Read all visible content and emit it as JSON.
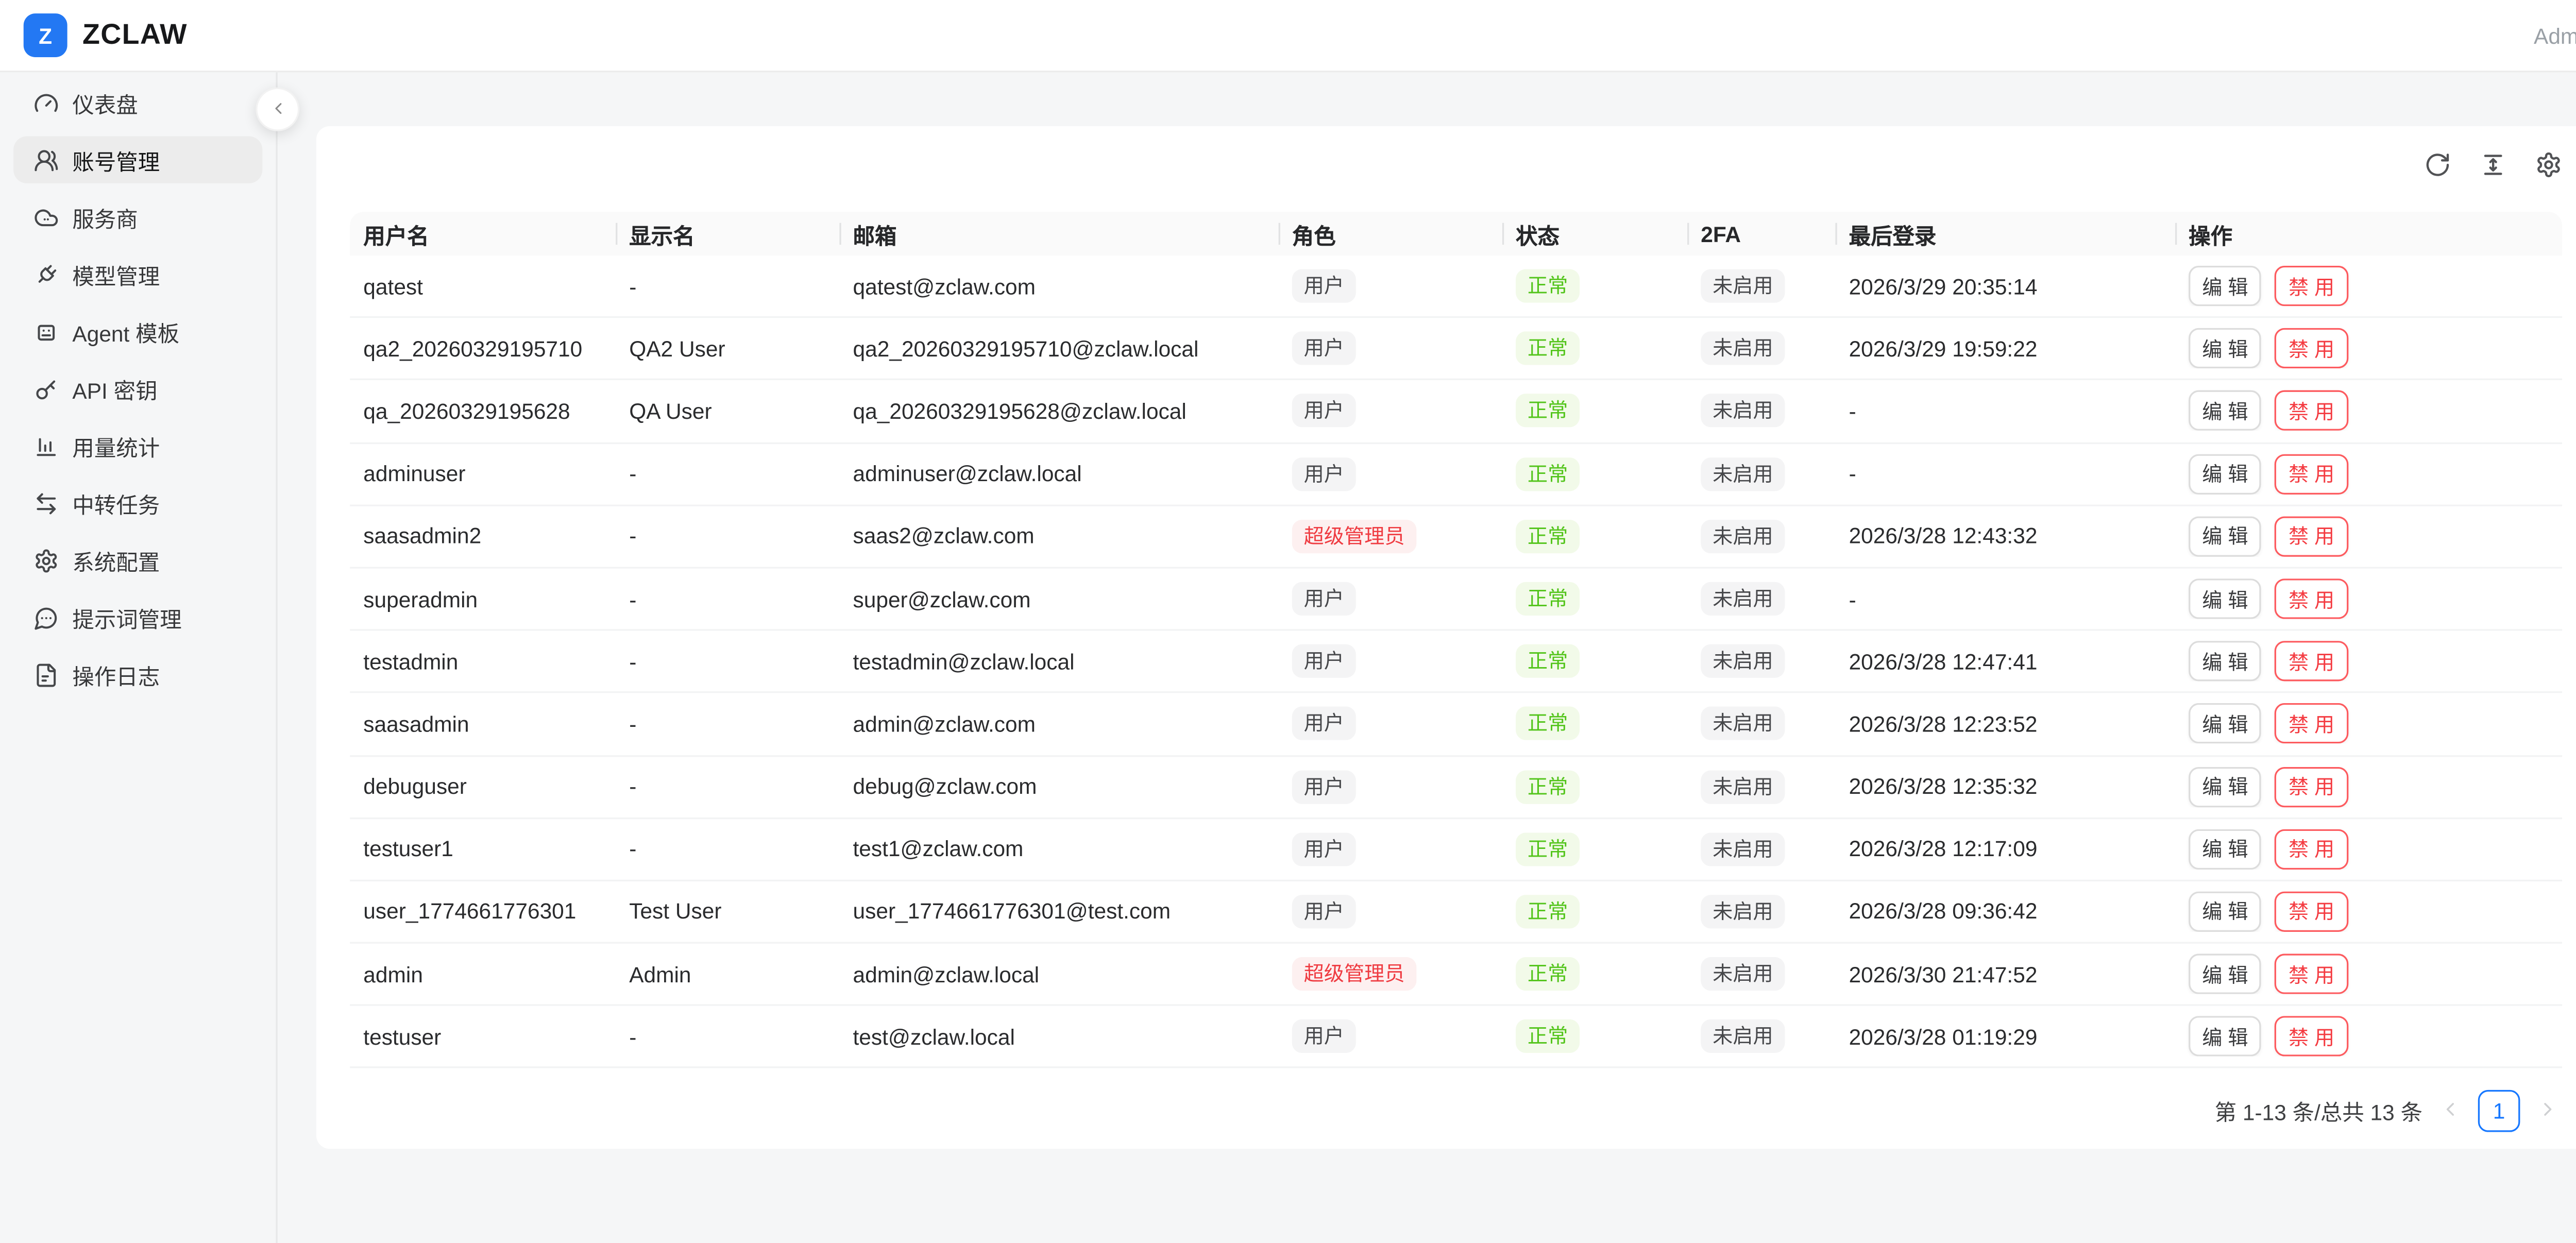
{
  "topbar": {
    "logo_letter": "Z",
    "brand": "ZCLAW",
    "user_label": "Admin"
  },
  "sidebar": {
    "items": [
      {
        "key": "dashboard",
        "icon": "gauge-icon",
        "label": "仪表盘",
        "active": false
      },
      {
        "key": "accounts",
        "icon": "users-icon",
        "label": "账号管理",
        "active": true
      },
      {
        "key": "providers",
        "icon": "cloud-icon",
        "label": "服务商",
        "active": false
      },
      {
        "key": "models",
        "icon": "plug-icon",
        "label": "模型管理",
        "active": false
      },
      {
        "key": "agent-templates",
        "icon": "bot-icon",
        "label": "Agent 模板",
        "active": false
      },
      {
        "key": "api-keys",
        "icon": "key-icon",
        "label": "API 密钥",
        "active": false
      },
      {
        "key": "usage-stats",
        "icon": "chart-icon",
        "label": "用量统计",
        "active": false
      },
      {
        "key": "relay-tasks",
        "icon": "swap-icon",
        "label": "中转任务",
        "active": false
      },
      {
        "key": "system-config",
        "icon": "gear-icon",
        "label": "系统配置",
        "active": false
      },
      {
        "key": "prompts",
        "icon": "chat-icon",
        "label": "提示词管理",
        "active": false
      },
      {
        "key": "op-logs",
        "icon": "file-icon",
        "label": "操作日志",
        "active": false
      }
    ]
  },
  "toolbar": {
    "icons": [
      {
        "name": "refresh-icon"
      },
      {
        "name": "column-height-icon"
      },
      {
        "name": "settings-icon"
      }
    ]
  },
  "table": {
    "columns": [
      "用户名",
      "显示名",
      "邮箱",
      "角色",
      "状态",
      "2FA",
      "最后登录",
      "操作"
    ],
    "actions": {
      "edit": "编 辑",
      "disable": "禁 用"
    },
    "rows": [
      {
        "username": "qatest",
        "display_name": "-",
        "email": "qatest@zclaw.com",
        "role_label": "用户",
        "role_type": "user",
        "status_label": "正常",
        "twofa_label": "未启用",
        "last_login": "2026/3/29 20:35:14"
      },
      {
        "username": "qa2_20260329195710",
        "display_name": "QA2 User",
        "email": "qa2_20260329195710@zclaw.local",
        "role_label": "用户",
        "role_type": "user",
        "status_label": "正常",
        "twofa_label": "未启用",
        "last_login": "2026/3/29 19:59:22"
      },
      {
        "username": "qa_20260329195628",
        "display_name": "QA User",
        "email": "qa_20260329195628@zclaw.local",
        "role_label": "用户",
        "role_type": "user",
        "status_label": "正常",
        "twofa_label": "未启用",
        "last_login": "-"
      },
      {
        "username": "adminuser",
        "display_name": "-",
        "email": "adminuser@zclaw.local",
        "role_label": "用户",
        "role_type": "user",
        "status_label": "正常",
        "twofa_label": "未启用",
        "last_login": "-"
      },
      {
        "username": "saasadmin2",
        "display_name": "-",
        "email": "saas2@zclaw.com",
        "role_label": "超级管理员",
        "role_type": "super",
        "status_label": "正常",
        "twofa_label": "未启用",
        "last_login": "2026/3/28 12:43:32"
      },
      {
        "username": "superadmin",
        "display_name": "-",
        "email": "super@zclaw.com",
        "role_label": "用户",
        "role_type": "user",
        "status_label": "正常",
        "twofa_label": "未启用",
        "last_login": "-"
      },
      {
        "username": "testadmin",
        "display_name": "-",
        "email": "testadmin@zclaw.local",
        "role_label": "用户",
        "role_type": "user",
        "status_label": "正常",
        "twofa_label": "未启用",
        "last_login": "2026/3/28 12:47:41"
      },
      {
        "username": "saasadmin",
        "display_name": "-",
        "email": "admin@zclaw.com",
        "role_label": "用户",
        "role_type": "user",
        "status_label": "正常",
        "twofa_label": "未启用",
        "last_login": "2026/3/28 12:23:52"
      },
      {
        "username": "debuguser",
        "display_name": "-",
        "email": "debug@zclaw.com",
        "role_label": "用户",
        "role_type": "user",
        "status_label": "正常",
        "twofa_label": "未启用",
        "last_login": "2026/3/28 12:35:32"
      },
      {
        "username": "testuser1",
        "display_name": "-",
        "email": "test1@zclaw.com",
        "role_label": "用户",
        "role_type": "user",
        "status_label": "正常",
        "twofa_label": "未启用",
        "last_login": "2026/3/28 12:17:09"
      },
      {
        "username": "user_1774661776301",
        "display_name": "Test User",
        "email": "user_1774661776301@test.com",
        "role_label": "用户",
        "role_type": "user",
        "status_label": "正常",
        "twofa_label": "未启用",
        "last_login": "2026/3/28 09:36:42"
      },
      {
        "username": "admin",
        "display_name": "Admin",
        "email": "admin@zclaw.local",
        "role_label": "超级管理员",
        "role_type": "super",
        "status_label": "正常",
        "twofa_label": "未启用",
        "last_login": "2026/3/30 21:47:52"
      },
      {
        "username": "testuser",
        "display_name": "-",
        "email": "test@zclaw.local",
        "role_label": "用户",
        "role_type": "user",
        "status_label": "正常",
        "twofa_label": "未启用",
        "last_login": "2026/3/28 01:19:29"
      }
    ]
  },
  "pagination": {
    "summary": "第 1-13 条/总共 13 条",
    "current_page": "1"
  },
  "colors": {
    "accent_blue": "#1677ff",
    "brand_blue": "#2378f3",
    "success_green": "#52c41a",
    "success_bg": "#f2fae9",
    "danger_red": "#ef3b41",
    "danger_bg": "#fdf0f0",
    "neutral_badge_bg": "#f4f4f5"
  }
}
